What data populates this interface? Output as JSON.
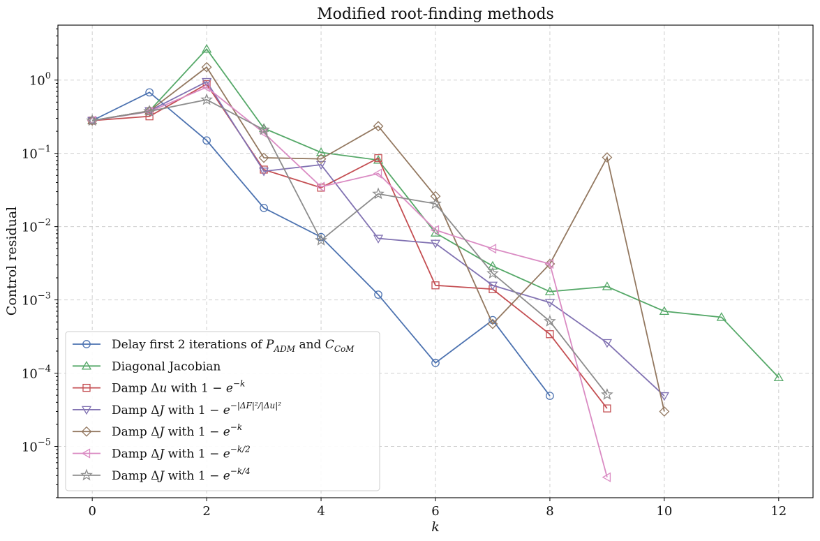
{
  "chart_data": {
    "type": "line",
    "title": "Modified root-finding methods",
    "xlabel": "k",
    "ylabel": "Control residual",
    "xlim": [
      -0.6,
      12.6
    ],
    "ylim_log10": [
      -5.7,
      0.75
    ],
    "y_scale": "log",
    "grid": true,
    "legend_position": "lower-left",
    "x_ticks": [
      0,
      2,
      4,
      6,
      8,
      10,
      12
    ],
    "x_tick_labels": [
      "0",
      "2",
      "4",
      "6",
      "8",
      "10",
      "12"
    ],
    "y_ticks_log10": [
      0,
      -1,
      -2,
      -3,
      -4,
      -5
    ],
    "y_tick_labels": [
      {
        "base": "10",
        "exp": "0"
      },
      {
        "base": "10",
        "exp": "−1"
      },
      {
        "base": "10",
        "exp": "−2"
      },
      {
        "base": "10",
        "exp": "−3"
      },
      {
        "base": "10",
        "exp": "−4"
      },
      {
        "base": "10",
        "exp": "−5"
      }
    ],
    "series": [
      {
        "name": "Delay first 2 iterations of P_ADM and C_CoM",
        "legend": [
          {
            "t": "Delay first 2 iterations of "
          },
          {
            "t": "P",
            "i": true
          },
          {
            "t": "ADM",
            "sub": true,
            "i": true
          },
          {
            "t": " and "
          },
          {
            "t": "C",
            "i": true
          },
          {
            "t": "CoM",
            "sub": true,
            "i": true
          }
        ],
        "color": "#4c72b0",
        "marker": "circle",
        "x": [
          0,
          1,
          2,
          3,
          4,
          5,
          6,
          7,
          8
        ],
        "y": [
          0.28,
          0.68,
          0.15,
          0.018,
          0.0072,
          0.00118,
          0.000138,
          0.00053,
          4.9e-05
        ]
      },
      {
        "name": "Diagonal Jacobian",
        "legend": [
          {
            "t": "Diagonal Jacobian"
          }
        ],
        "color": "#55a868",
        "marker": "triangle-up",
        "x": [
          0,
          1,
          2,
          3,
          4,
          5,
          6,
          7,
          8,
          9,
          10,
          11,
          12
        ],
        "y": [
          0.28,
          0.38,
          2.65,
          0.22,
          0.103,
          0.081,
          0.0082,
          0.0029,
          0.0013,
          0.00152,
          0.0007,
          0.00058,
          8.7e-05
        ]
      },
      {
        "name": "Damp Δu with 1 − e^(−k)",
        "legend": [
          {
            "t": "Damp Δ"
          },
          {
            "t": "u",
            "i": true
          },
          {
            "t": " with 1 − "
          },
          {
            "t": "e",
            "i": true
          },
          {
            "t": "−k",
            "sup": true,
            "i": true
          }
        ],
        "color": "#c44e52",
        "marker": "square",
        "x": [
          0,
          1,
          2,
          3,
          4,
          5,
          6,
          7,
          8,
          9
        ],
        "y": [
          0.28,
          0.32,
          0.88,
          0.06,
          0.034,
          0.086,
          0.00158,
          0.0014,
          0.00034,
          3.3e-05
        ]
      },
      {
        "name": "Damp ΔJ with 1 − e^(−|ΔF|²/|Δu|²)",
        "legend": [
          {
            "t": "Damp Δ"
          },
          {
            "t": "J",
            "i": true
          },
          {
            "t": " with 1 − "
          },
          {
            "t": "e",
            "i": true
          },
          {
            "t": "−|ΔF|²/|Δu|²",
            "sup": true,
            "i": true
          }
        ],
        "color": "#8172b2",
        "marker": "triangle-down",
        "x": [
          0,
          1,
          2,
          3,
          4,
          5,
          6,
          7,
          8,
          9,
          10
        ],
        "y": [
          0.28,
          0.38,
          0.95,
          0.057,
          0.07,
          0.0069,
          0.0059,
          0.00158,
          0.00092,
          0.00026,
          4.9e-05
        ]
      },
      {
        "name": "Damp ΔJ with 1 − e^(−k)",
        "legend": [
          {
            "t": "Damp Δ"
          },
          {
            "t": "J",
            "i": true
          },
          {
            "t": " with 1 − "
          },
          {
            "t": "e",
            "i": true
          },
          {
            "t": "−k",
            "sup": true,
            "i": true
          }
        ],
        "color": "#937860",
        "marker": "diamond",
        "x": [
          0,
          1,
          2,
          3,
          4,
          5,
          6,
          7,
          8,
          9,
          10
        ],
        "y": [
          0.28,
          0.38,
          1.5,
          0.087,
          0.084,
          0.235,
          0.026,
          0.00047,
          0.0031,
          0.088,
          3e-05
        ]
      },
      {
        "name": "Damp ΔJ with 1 − e^(−k/2)",
        "legend": [
          {
            "t": "Damp Δ"
          },
          {
            "t": "J",
            "i": true
          },
          {
            "t": " with 1 − "
          },
          {
            "t": "e",
            "i": true
          },
          {
            "t": "−k/2",
            "sup": true,
            "i": true
          }
        ],
        "color": "#da8bc3",
        "marker": "triangle-left",
        "x": [
          0,
          1,
          2,
          3,
          4,
          5,
          6,
          7,
          8,
          9
        ],
        "y": [
          0.28,
          0.37,
          0.8,
          0.19,
          0.035,
          0.053,
          0.009,
          0.005,
          0.0031,
          3.8e-06
        ]
      },
      {
        "name": "Damp ΔJ with 1 − e^(−k/4)",
        "legend": [
          {
            "t": "Damp Δ"
          },
          {
            "t": "J",
            "i": true
          },
          {
            "t": " with 1 − "
          },
          {
            "t": "e",
            "i": true
          },
          {
            "t": "−k/4",
            "sup": true,
            "i": true
          }
        ],
        "color": "#8c8c8c",
        "marker": "star",
        "x": [
          0,
          1,
          2,
          3,
          4,
          5,
          6,
          7,
          8,
          9
        ],
        "y": [
          0.28,
          0.375,
          0.54,
          0.21,
          0.0065,
          0.028,
          0.0205,
          0.0023,
          0.00051,
          5.1e-05
        ]
      }
    ]
  }
}
